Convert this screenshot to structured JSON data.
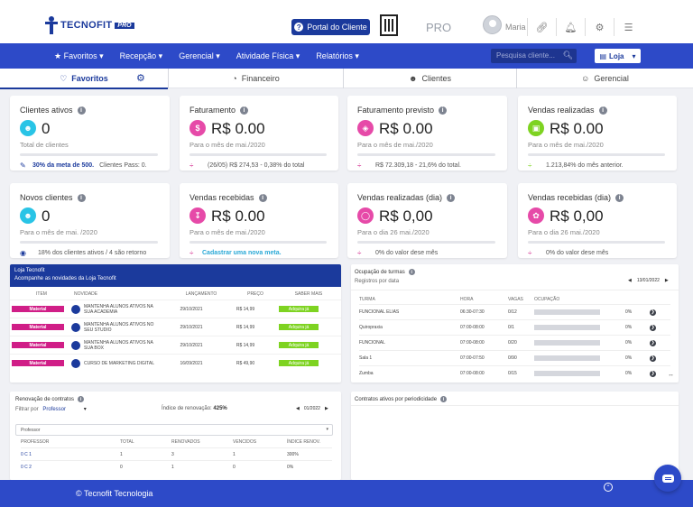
{
  "header": {
    "logo_text": "TECNOFIT",
    "logo_badge": "PRO",
    "portal_button": "Portal do Cliente",
    "plan_label": "PRO",
    "user_name": "Maria",
    "icons": [
      "link-icon",
      "bell-icon",
      "gears-icon",
      "checklist-icon"
    ]
  },
  "nav": {
    "items": [
      "Favoritos",
      "Recepção",
      "Gerencial",
      "Atividade Física",
      "Relatórios"
    ],
    "search_placeholder": "Pesquisa cliente...",
    "loja_label": "Loja"
  },
  "tabs": [
    "Favoritos",
    "Financeiro",
    "Clientes",
    "Gerencial"
  ],
  "cards": [
    {
      "title": "Clientes ativos",
      "value": "0",
      "sub": "Total de clientes",
      "progress": 0,
      "foot_strong": "30% da meta de 500.",
      "foot_rest": "Clientes Pass: 0.",
      "icon": "people-icon",
      "color": "#29c4e6"
    },
    {
      "title": "Faturamento",
      "value": "R$ 0.00",
      "sub": "Para o mês de mai./2020",
      "progress": 0,
      "foot_strong": "",
      "foot_rest": "(26/05) R$ 274,53 - 0,38% do total",
      "icon": "dollar-icon",
      "color": "#e64aa8"
    },
    {
      "title": "Faturamento previsto",
      "value": "R$ 0.00",
      "sub": "Para o mês de mai./2020",
      "progress": 0,
      "foot_strong": "",
      "foot_rest": "R$ 72.309,18 - 21,6% do total.",
      "icon": "moneybag-icon",
      "color": "#e64aa8"
    },
    {
      "title": "Vendas realizadas",
      "value": "R$ 0.00",
      "sub": "Para o mês de mai./2020",
      "progress": 0,
      "foot_strong": "",
      "foot_rest": "1.213,84% do mês anterior.",
      "icon": "cash-icon",
      "color": "#7ed321"
    },
    {
      "title": "Novos clientes",
      "value": "0",
      "sub": "Para o mês de mai. /2020",
      "progress": 0,
      "foot_strong": "",
      "foot_rest": "18% dos clientes ativos / 4 são retorno",
      "icon": "new-people-icon",
      "color": "#29c4e6"
    },
    {
      "title": "Vendas recebidas",
      "value": "R$ 0.00",
      "sub": "Para o mês de mai./2020",
      "progress": 0,
      "foot_strong": "Cadastrar uma nova meta.",
      "foot_rest": "",
      "icon": "download-icon",
      "color": "#e64aa8"
    },
    {
      "title": "Vendas realizadas (dia)",
      "value": "R$ 0,00",
      "sub": "Para o dia 26 mai./2020",
      "progress": 0,
      "foot_strong": "",
      "foot_rest": "0% do valor dese mês",
      "icon": "tag-icon",
      "color": "#e64aa8"
    },
    {
      "title": "Vendas recebidas (dia)",
      "value": "R$ 0,00",
      "sub": "Para o dia 26 mai./2020",
      "progress": 0,
      "foot_strong": "",
      "foot_rest": "0% do valor dese mês",
      "icon": "flowers-icon",
      "color": "#e64aa8"
    }
  ],
  "loja": {
    "title": "Loja Tecnofit",
    "subtitle": "Acompanhe as novidades da Loja Tecnofit",
    "columns": [
      "ITEM",
      "NOVIDADE",
      "LANÇAMENTO",
      "PREÇO",
      "SABER MAIS"
    ],
    "rows": [
      {
        "item": "Material",
        "novidade": "MANTENHA ALUNOS ATIVOS NA SUA ACADEMIA",
        "data": "29/10/2021",
        "preco": "R$ 14,99",
        "btn": "Adquira já"
      },
      {
        "item": "Material",
        "novidade": "MANTENHA ALUNOS ATIVOS NO SEU STUDIO",
        "data": "29/10/2021",
        "preco": "R$ 14,99",
        "btn": "Adquira já"
      },
      {
        "item": "Material",
        "novidade": "MANTENHA ALUNOS ATIVOS NA SUA BOX",
        "data": "29/10/2021",
        "preco": "R$ 14,99",
        "btn": "Adquira já"
      },
      {
        "item": "Material",
        "novidade": "CURSO DE MARKETING DIGITAL",
        "data": "16/09/2021",
        "preco": "R$ 49,90",
        "btn": "Adquira já"
      }
    ]
  },
  "ocupacao": {
    "title": "Ocupação de turmas",
    "subtitle": "Registros por data",
    "date": "13/01/2022",
    "columns": [
      "TURMA",
      "HORA",
      "VAGAS",
      "OCUPAÇÃO"
    ],
    "rows": [
      {
        "turma": "FUNCIONAL ELIAS",
        "hora": "06:30-07:30",
        "vagas": "0/12",
        "pct": "0%"
      },
      {
        "turma": "Quiropraxia",
        "hora": "07:00-08:00",
        "vagas": "0/1",
        "pct": "0%"
      },
      {
        "turma": "FUNCIONAL",
        "hora": "07:00-08:00",
        "vagas": "0/20",
        "pct": "0%"
      },
      {
        "turma": "Sala 1",
        "hora": "07:00-07:50",
        "vagas": "0/90",
        "pct": "0%"
      },
      {
        "turma": "Zumba",
        "hora": "07:00-08:00",
        "vagas": "0/15",
        "pct": "0%"
      }
    ]
  },
  "renovacao": {
    "title": "Renovação de contratos",
    "filter_label": "Filtrar por",
    "filter_value": "Professor",
    "indice_label": "Índice de renovação:",
    "indice_value": "425%",
    "date": "01/2022",
    "select_value": "Professor",
    "columns": [
      "PROFESSOR",
      "TOTAL",
      "RENOVADOS",
      "VENCIDOS",
      "ÍNDICE RENOV."
    ],
    "rows": [
      {
        "prof": "0 C 1",
        "total": "1",
        "renov": "3",
        "venc": "1",
        "indice": "300%"
      },
      {
        "prof": "0 C 2",
        "total": "0",
        "renov": "1",
        "venc": "0",
        "indice": "0%"
      }
    ]
  },
  "contratos": {
    "title": "Contratos ativos por periodicidade"
  },
  "footer": {
    "text": "© Tecnofit Tecnologia"
  }
}
